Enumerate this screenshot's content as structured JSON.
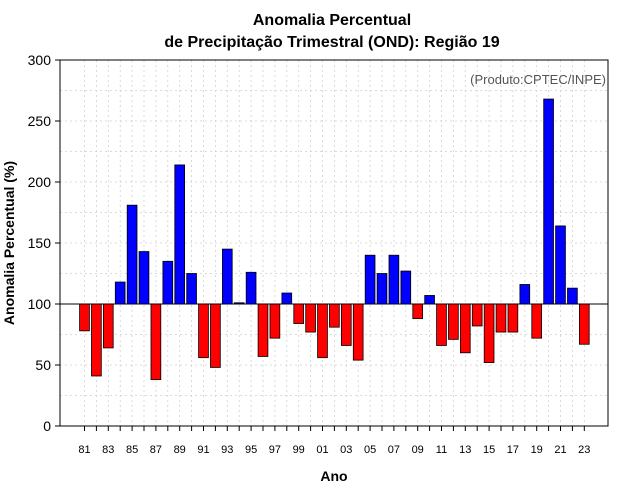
{
  "chart_data": {
    "type": "bar",
    "title_line1": "Anomalia Percentual",
    "title_line2": "de Precipitação Trimestral (OND): Região 19",
    "xlabel": "Ano",
    "ylabel": "Anomalia Percentual (%)",
    "source_note": "(Produto:CPTEC/INPE)",
    "ylim": [
      0,
      300
    ],
    "yticks": [
      "0",
      "50",
      "100",
      "150",
      "200",
      "250",
      "300"
    ],
    "baseline": 100,
    "grid": true,
    "categories": [
      "81",
      "82",
      "83",
      "84",
      "85",
      "86",
      "87",
      "88",
      "89",
      "90",
      "91",
      "92",
      "93",
      "94",
      "95",
      "96",
      "97",
      "98",
      "99",
      "00",
      "01",
      "02",
      "03",
      "04",
      "05",
      "06",
      "07",
      "08",
      "09",
      "10",
      "11",
      "12",
      "13",
      "14",
      "15",
      "16",
      "17",
      "18",
      "19",
      "20",
      "21",
      "22",
      "23"
    ],
    "values": [
      78,
      41,
      64,
      118,
      181,
      143,
      38,
      135,
      214,
      125,
      56,
      48,
      145,
      101,
      126,
      57,
      72,
      109,
      84,
      77,
      56,
      81,
      66,
      54,
      140,
      125,
      140,
      127,
      88,
      107,
      66,
      71,
      60,
      82,
      52,
      77,
      77,
      116,
      72,
      268,
      164,
      113,
      67
    ],
    "xtick_labels": [
      "81",
      "83",
      "85",
      "87",
      "89",
      "91",
      "93",
      "95",
      "97",
      "99",
      "01",
      "03",
      "05",
      "07",
      "09",
      "11",
      "13",
      "15",
      "17",
      "19",
      "21",
      "23"
    ],
    "colors": {
      "above": "#0000ff",
      "below": "#ff0000",
      "grid": "#d0d0d0",
      "axis": "#000000"
    }
  }
}
